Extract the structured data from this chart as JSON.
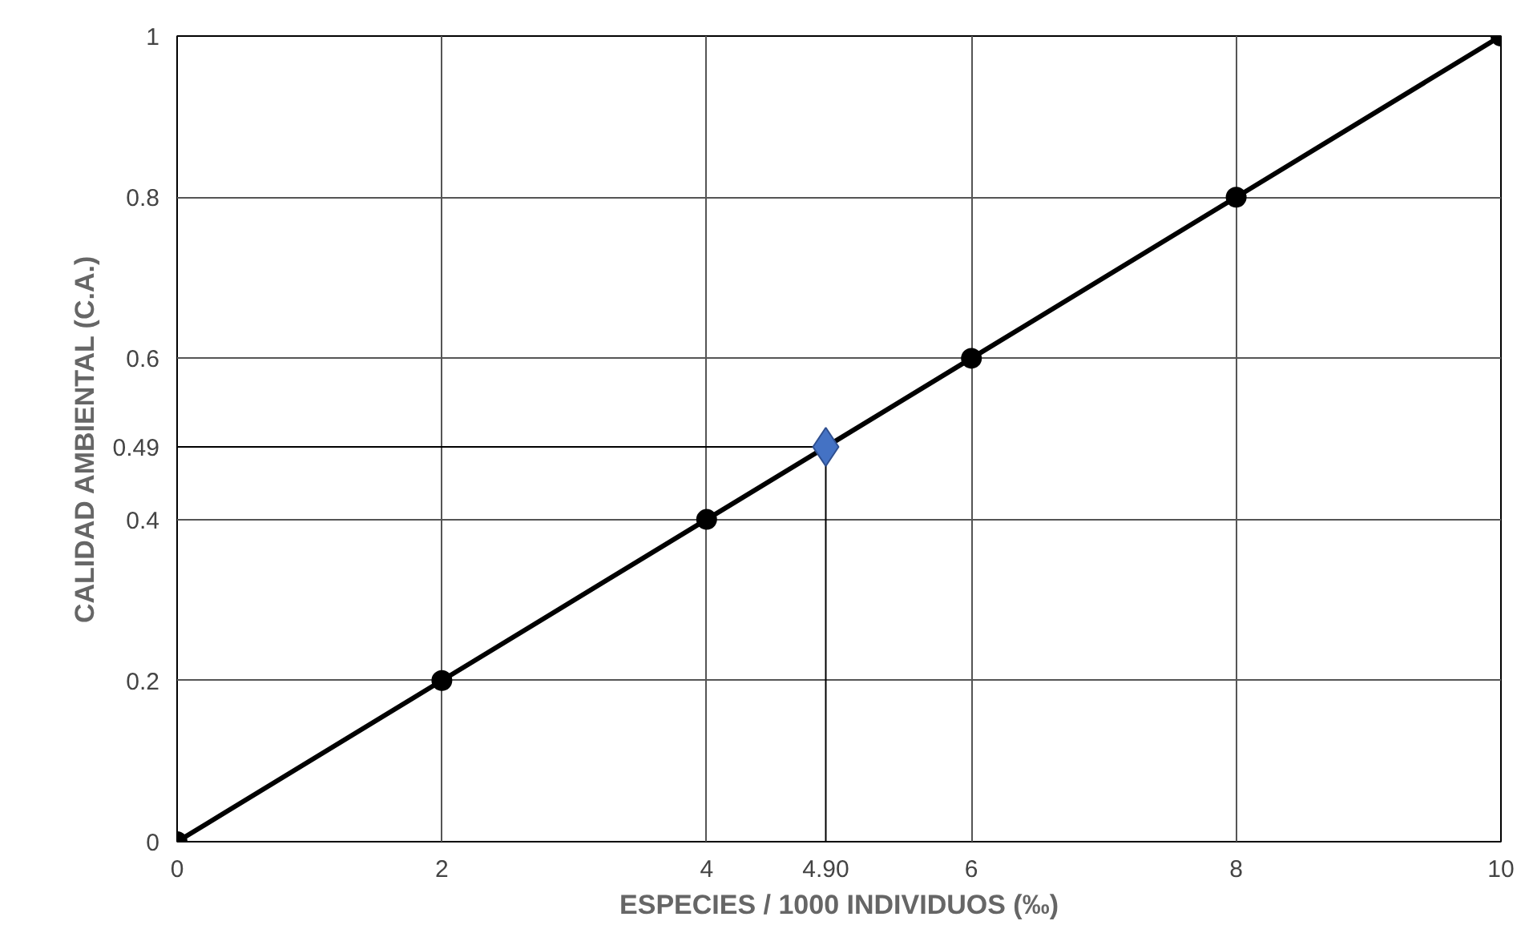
{
  "chart_data": {
    "type": "line",
    "xlabel": "ESPECIES / 1000 INDIVIDUOS (‰)",
    "ylabel": "CALIDAD AMBIENTAL (C.A.)",
    "xlim": [
      0,
      10
    ],
    "ylim": [
      0,
      1
    ],
    "xticks": [
      0,
      2,
      4,
      6,
      8,
      10
    ],
    "yticks": [
      0,
      0.2,
      0.4,
      0.6,
      0.8,
      1
    ],
    "grid": true,
    "marker": "circle",
    "line_style": "solid",
    "series": [
      {
        "type": "line",
        "color": "#000000",
        "x": [
          0,
          2,
          4,
          6,
          8,
          10
        ],
        "values": [
          0,
          0.2,
          0.4,
          0.6,
          0.8,
          1
        ]
      },
      {
        "type": "scatter",
        "marker": "diamond",
        "color": "#4472c4",
        "x": [
          4.9
        ],
        "values": [
          0.49
        ]
      }
    ],
    "ref_lines": [
      {
        "axis": "x",
        "value": 4.9,
        "label": "4.90",
        "color": "#000000"
      },
      {
        "axis": "y",
        "value": 0.49,
        "label": "0.49",
        "color": "#000000"
      }
    ]
  }
}
